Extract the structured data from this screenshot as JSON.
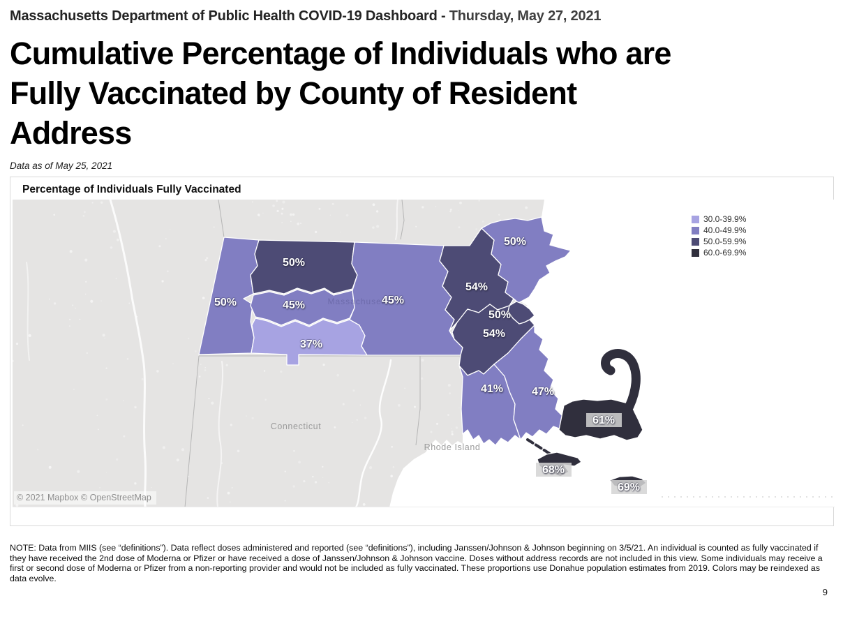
{
  "header": {
    "title": "Massachusetts Department of Public Health COVID-19 Dashboard - ",
    "date": "Thursday, May 27, 2021"
  },
  "page_title_lines": [
    "Cumulative Percentage of Individuals who are",
    "Fully Vaccinated by County of Resident",
    "Address"
  ],
  "data_as_of": "Data as of May 25, 2021",
  "chart": {
    "title": "Percentage of Individuals Fully Vaccinated",
    "attribution": "© 2021 Mapbox © OpenStreetMap"
  },
  "legend": {
    "bands": [
      {
        "label": "30.0-39.9%",
        "color": "#a7a3e2"
      },
      {
        "label": "40.0-49.9%",
        "color": "#817ec2"
      },
      {
        "label": "50.0-59.9%",
        "color": "#4d4b75"
      },
      {
        "label": "60.0-69.9%",
        "color": "#302f3d"
      }
    ]
  },
  "map": {
    "state_labels": {
      "connecticut": "Connecticut",
      "rhode_island": "Rhode Island",
      "massachusetts": "Massachusetts"
    },
    "counties": [
      {
        "name": "Berkshire",
        "label": "50%",
        "band": 1
      },
      {
        "name": "Franklin",
        "label": "50%",
        "band": 2
      },
      {
        "name": "Hampshire",
        "label": "45%",
        "band": 1
      },
      {
        "name": "Hampden",
        "label": "37%",
        "band": 0
      },
      {
        "name": "Worcester",
        "label": "45%",
        "band": 1
      },
      {
        "name": "Middlesex",
        "label": "54%",
        "band": 2
      },
      {
        "name": "Essex",
        "label": "50%",
        "band": 1
      },
      {
        "name": "Suffolk",
        "label": "50%",
        "band": 2
      },
      {
        "name": "Norfolk",
        "label": "54%",
        "band": 2
      },
      {
        "name": "Bristol",
        "label": "41%",
        "band": 1
      },
      {
        "name": "Plymouth",
        "label": "47%",
        "band": 1
      },
      {
        "name": "Barnstable",
        "label": "61%",
        "band": 3
      },
      {
        "name": "Dukes",
        "label": "68%",
        "band": 3
      },
      {
        "name": "Nantucket",
        "label": "69%",
        "band": 3
      }
    ]
  },
  "note": "NOTE: Data from MIIS (see “definitions”). Data reflect doses administered and reported (see “definitions”), including Janssen/Johnson & Johnson beginning on 3/5/21. An individual is counted as fully vaccinated if they have received the 2nd dose of Moderna or Pfizer or have received a dose of Janssen/Johnson & Johnson vaccine. Doses without address records are not included in this view. Some individuals may receive a first or second dose of Moderna or Pfizer from a non-reporting provider and would not be included as fully vaccinated. These proportions use Donahue population estimates from 2019. Colors may be reindexed as data evolve.",
  "page_number": "9",
  "chart_data": {
    "type": "heatmap",
    "subtype": "choropleth-map",
    "title": "Percentage of Individuals Fully Vaccinated",
    "region": "Massachusetts counties",
    "categories": [
      "Berkshire",
      "Franklin",
      "Hampshire",
      "Hampden",
      "Worcester",
      "Middlesex",
      "Essex",
      "Suffolk",
      "Norfolk",
      "Bristol",
      "Plymouth",
      "Barnstable",
      "Dukes",
      "Nantucket"
    ],
    "values": [
      50,
      50,
      45,
      37,
      45,
      54,
      50,
      50,
      54,
      41,
      47,
      61,
      68,
      69
    ],
    "unit": "%",
    "legend_bins": [
      "30.0-39.9%",
      "40.0-49.9%",
      "50.0-59.9%",
      "60.0-69.9%"
    ],
    "legend_position": "top-right",
    "basemap": "Mapbox / OpenStreetMap light gray"
  }
}
